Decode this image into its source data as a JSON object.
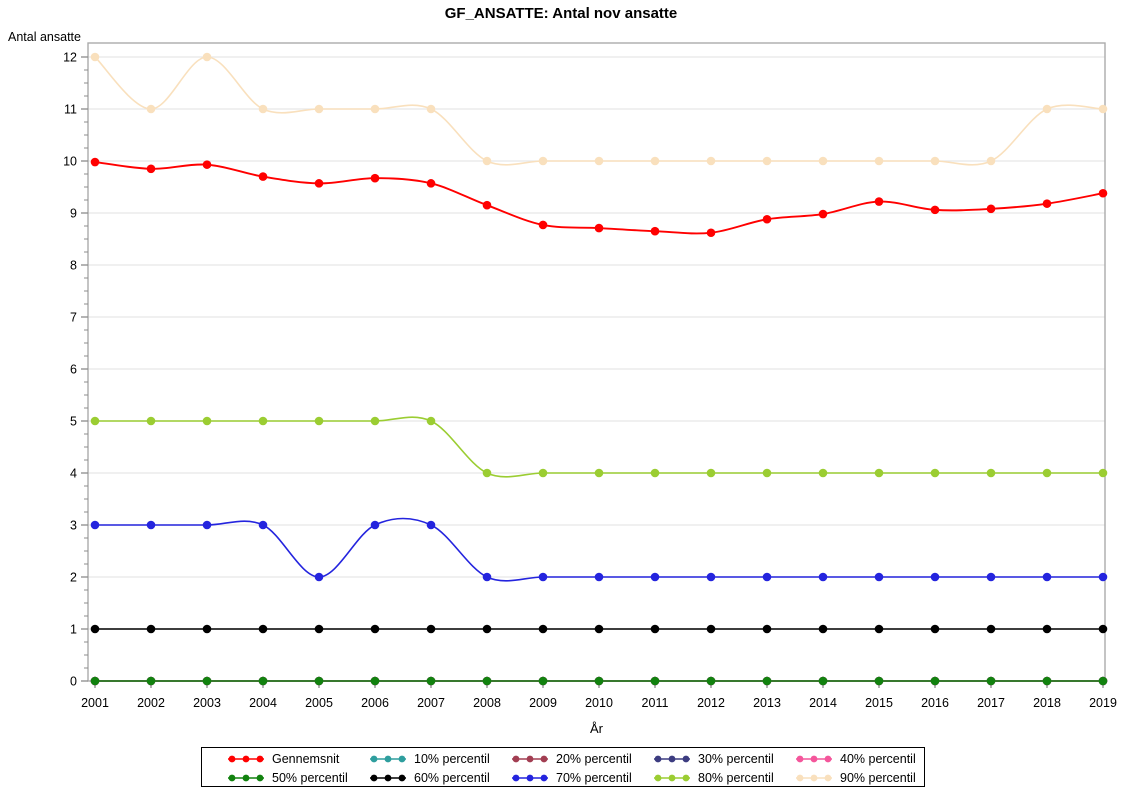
{
  "chart_data": {
    "type": "line",
    "title": "GF_ANSATTE: Antal nov ansatte",
    "ylabel": "Antal ansatte",
    "xlabel": "År",
    "categories": [
      "2001",
      "2002",
      "2003",
      "2004",
      "2005",
      "2006",
      "2007",
      "2008",
      "2009",
      "2010",
      "2011",
      "2012",
      "2013",
      "2014",
      "2015",
      "2016",
      "2017",
      "2018",
      "2019"
    ],
    "ylim": [
      0,
      12
    ],
    "yticks": [
      0,
      1,
      2,
      3,
      4,
      5,
      6,
      7,
      8,
      9,
      10,
      11,
      12
    ],
    "y_minor_divisions": 4,
    "grid": "horizontal",
    "legend_position": "bottom",
    "curve": "smooth-spline",
    "series": [
      {
        "name": "Gennemsnit",
        "color": "#FF0000",
        "values": [
          9.98,
          9.85,
          9.93,
          9.7,
          9.57,
          9.67,
          9.57,
          9.15,
          8.77,
          8.71,
          8.65,
          8.62,
          8.88,
          8.98,
          9.22,
          9.06,
          9.08,
          9.18,
          9.38
        ]
      },
      {
        "name": "10% percentil",
        "color": "#2E9E9E",
        "values": [
          0,
          0,
          0,
          0,
          0,
          0,
          0,
          0,
          0,
          0,
          0,
          0,
          0,
          0,
          0,
          0,
          0,
          0,
          0
        ]
      },
      {
        "name": "20% percentil",
        "color": "#A23E52",
        "values": [
          0,
          0,
          0,
          0,
          0,
          0,
          0,
          0,
          0,
          0,
          0,
          0,
          0,
          0,
          0,
          0,
          0,
          0,
          0
        ]
      },
      {
        "name": "30% percentil",
        "color": "#3C3C80",
        "values": [
          0,
          0,
          0,
          0,
          0,
          0,
          0,
          0,
          0,
          0,
          0,
          0,
          0,
          0,
          0,
          0,
          0,
          0,
          0
        ]
      },
      {
        "name": "40% percentil",
        "color": "#F4569B",
        "values": [
          0,
          0,
          0,
          0,
          0,
          0,
          0,
          0,
          0,
          0,
          0,
          0,
          0,
          0,
          0,
          0,
          0,
          0,
          0
        ]
      },
      {
        "name": "50% percentil",
        "color": "#12820F",
        "values": [
          0,
          0,
          0,
          0,
          0,
          0,
          0,
          0,
          0,
          0,
          0,
          0,
          0,
          0,
          0,
          0,
          0,
          0,
          0
        ]
      },
      {
        "name": "60% percentil",
        "color": "#000000",
        "values": [
          1,
          1,
          1,
          1,
          1,
          1,
          1,
          1,
          1,
          1,
          1,
          1,
          1,
          1,
          1,
          1,
          1,
          1,
          1
        ]
      },
      {
        "name": "70% percentil",
        "color": "#2424DE",
        "values": [
          3,
          3,
          3,
          3,
          2,
          3,
          3,
          2,
          2,
          2,
          2,
          2,
          2,
          2,
          2,
          2,
          2,
          2,
          2
        ]
      },
      {
        "name": "80% percentil",
        "color": "#9BCD32",
        "values": [
          5,
          5,
          5,
          5,
          5,
          5,
          5,
          4,
          4,
          4,
          4,
          4,
          4,
          4,
          4,
          4,
          4,
          4,
          4
        ]
      },
      {
        "name": "90% percentil",
        "color": "#F9E0BD",
        "values": [
          12,
          11,
          12,
          11,
          11,
          11,
          11,
          10,
          10,
          10,
          10,
          10,
          10,
          10,
          10,
          10,
          10,
          11,
          11
        ]
      }
    ],
    "colors": {
      "background": "#FFFFFF",
      "gridline": "#E8E8E8",
      "frame": "#ABABAB",
      "tick": "#8C8C8C",
      "text": "#000000"
    }
  }
}
